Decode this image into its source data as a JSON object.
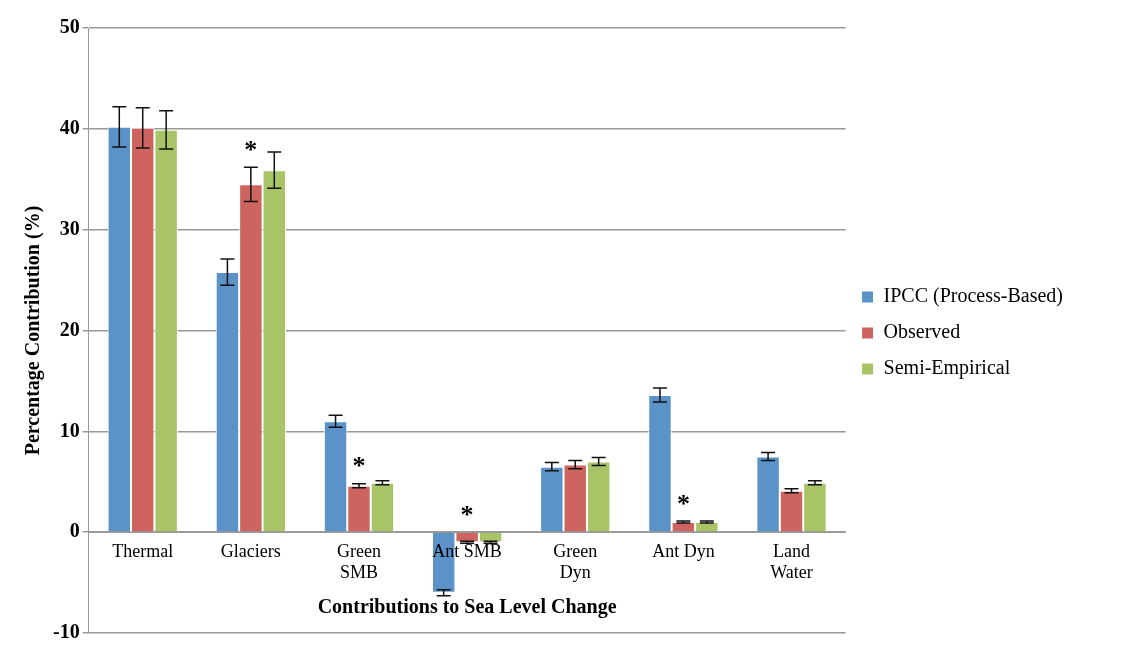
{
  "chart_data": {
    "type": "bar",
    "xlabel": "Contributions to Sea Level Change",
    "ylabel": "Percentage Contribution (%)",
    "categories": [
      "Thermal",
      "Glaciers",
      "Green SMB",
      "Ant SMB",
      "Green Dyn",
      "Ant Dyn",
      "Land Water"
    ],
    "series": [
      {
        "name": "IPCC (Process-Based)",
        "color": "#5b93c9",
        "values": [
          40.2,
          25.8,
          11.0,
          -6.0,
          6.5,
          13.6,
          7.5
        ],
        "errors": [
          2.0,
          1.3,
          0.6,
          0.3,
          0.4,
          0.7,
          0.4
        ]
      },
      {
        "name": "Observed",
        "color": "#cd6460",
        "values": [
          40.1,
          34.5,
          4.6,
          -1.0,
          6.7,
          1.0,
          4.1
        ],
        "errors": [
          2.0,
          1.7,
          0.2,
          0.1,
          0.4,
          0.1,
          0.2
        ]
      },
      {
        "name": "Semi-Empirical",
        "color": "#a8c466",
        "values": [
          39.9,
          35.9,
          4.9,
          -1.0,
          7.0,
          1.0,
          4.9
        ],
        "errors": [
          1.9,
          1.8,
          0.2,
          0.1,
          0.4,
          0.1,
          0.2
        ]
      }
    ],
    "ylim": [
      -10,
      50
    ],
    "yticks": [
      -10,
      0,
      10,
      20,
      30,
      40,
      50
    ],
    "grid": "y",
    "legend": "right",
    "annotations": [
      {
        "text": "*",
        "x": "Glaciers",
        "y": 34.5
      },
      {
        "text": "*",
        "x": "Green SMB",
        "y": 4.6
      },
      {
        "text": "*",
        "x": "Ant SMB",
        "y": -1.0
      },
      {
        "text": "*",
        "x": "Ant Dyn",
        "y": 1.0
      }
    ]
  }
}
